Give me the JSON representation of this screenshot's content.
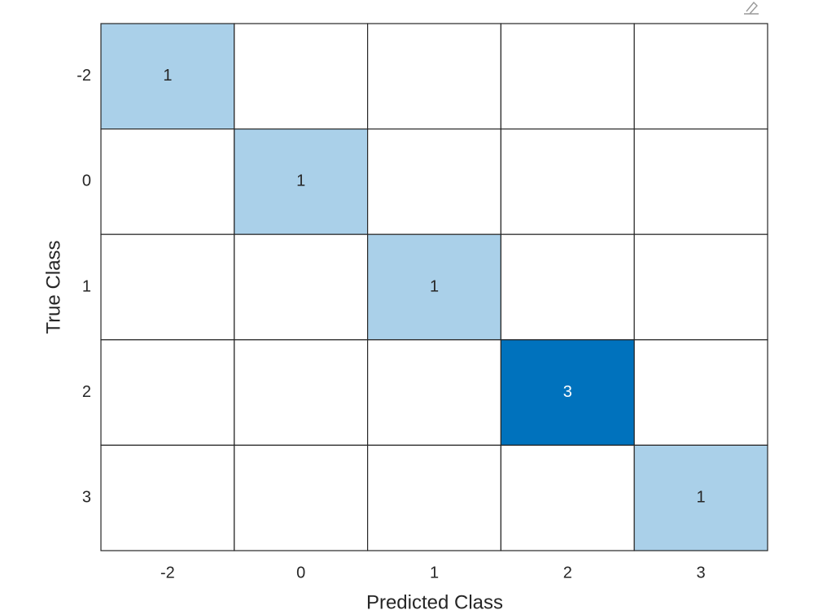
{
  "chart_data": {
    "type": "confusion",
    "xlabel": "Predicted Class",
    "ylabel": "True Class",
    "x_categories": [
      "-2",
      "0",
      "1",
      "2",
      "3"
    ],
    "y_categories": [
      "-2",
      "0",
      "1",
      "2",
      "3"
    ],
    "matrix": [
      [
        1,
        0,
        0,
        0,
        0
      ],
      [
        0,
        1,
        0,
        0,
        0
      ],
      [
        0,
        0,
        1,
        0,
        0
      ],
      [
        0,
        0,
        0,
        3,
        0
      ],
      [
        0,
        0,
        0,
        0,
        1
      ]
    ],
    "color": "#0072bd"
  }
}
